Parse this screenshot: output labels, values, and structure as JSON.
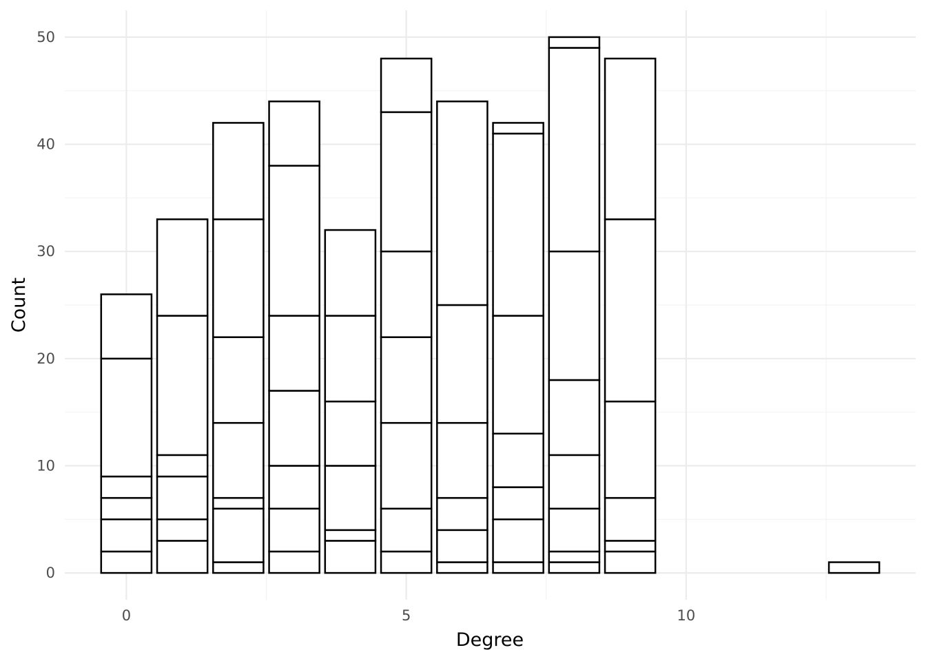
{
  "chart_data": {
    "type": "bar",
    "stacked": true,
    "xlabel": "Degree",
    "ylabel": "Count",
    "xlim": [
      -1.1,
      14.1
    ],
    "ylim": [
      -2.5,
      52.5
    ],
    "x_ticks": [
      {
        "value": 0,
        "label": "0"
      },
      {
        "value": 5,
        "label": "5"
      },
      {
        "value": 10,
        "label": "10"
      }
    ],
    "y_ticks": [
      {
        "value": 0,
        "label": "0"
      },
      {
        "value": 10,
        "label": "10"
      },
      {
        "value": 20,
        "label": "20"
      },
      {
        "value": 30,
        "label": "30"
      },
      {
        "value": 40,
        "label": "40"
      },
      {
        "value": 50,
        "label": "50"
      }
    ],
    "bar_width": 0.9,
    "grid": true,
    "fill_color": "#ffffff",
    "stroke_color": "#000000",
    "bars": [
      {
        "x": 0,
        "boundaries": [
          0,
          2,
          5,
          7,
          9,
          20,
          26
        ]
      },
      {
        "x": 1,
        "boundaries": [
          0,
          3,
          5,
          9,
          11,
          24,
          33
        ]
      },
      {
        "x": 2,
        "boundaries": [
          0,
          1,
          6,
          7,
          14,
          22,
          33,
          42
        ]
      },
      {
        "x": 3,
        "boundaries": [
          0,
          2,
          6,
          10,
          17,
          24,
          38,
          44
        ]
      },
      {
        "x": 4,
        "boundaries": [
          0,
          3,
          4,
          10,
          16,
          24,
          32
        ]
      },
      {
        "x": 5,
        "boundaries": [
          0,
          2,
          6,
          14,
          22,
          30,
          43,
          48
        ]
      },
      {
        "x": 6,
        "boundaries": [
          0,
          1,
          4,
          7,
          14,
          25,
          44
        ]
      },
      {
        "x": 7,
        "boundaries": [
          0,
          1,
          5,
          8,
          13,
          24,
          41,
          42
        ]
      },
      {
        "x": 8,
        "boundaries": [
          0,
          1,
          2,
          6,
          11,
          18,
          30,
          49,
          50
        ]
      },
      {
        "x": 9,
        "boundaries": [
          0,
          2,
          3,
          7,
          16,
          33,
          48
        ]
      },
      {
        "x": 13,
        "boundaries": [
          0,
          1
        ]
      }
    ]
  }
}
